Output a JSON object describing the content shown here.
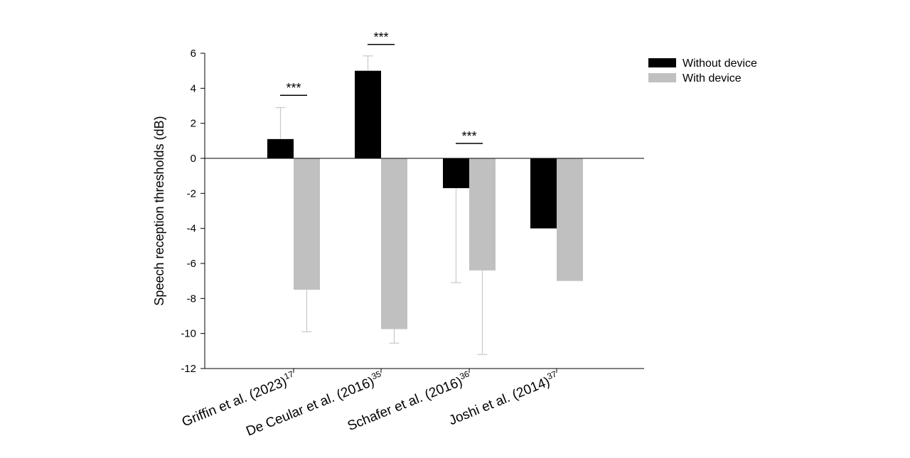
{
  "chart_data": {
    "type": "bar",
    "ylabel": "Speech reception thresholds (dB)",
    "ylim": [
      -12,
      6
    ],
    "yticks": [
      6,
      4,
      2,
      0,
      -2,
      -4,
      -6,
      -8,
      -10,
      -12
    ],
    "ytick_labels": [
      "6",
      "4",
      "2",
      "0",
      "-2",
      "-4",
      "-6",
      "-8",
      "-10",
      "-12"
    ],
    "grid": false,
    "legend_position": "top-right",
    "categories": [
      {
        "main": "Griffin et al. (2023)",
        "sup": "17"
      },
      {
        "main": "De Ceular et al. (2016)",
        "sup": "35"
      },
      {
        "main": "Schafer et al. (2016)",
        "sup": "36"
      },
      {
        "main": "Joshi et al. (2014)",
        "sup": "37"
      }
    ],
    "series": [
      {
        "name": "Without device",
        "color": "#000000",
        "values": [
          1.1,
          5.0,
          -1.7,
          -4.0
        ],
        "errors": [
          1.8,
          0.85,
          5.4,
          null
        ]
      },
      {
        "name": "With device",
        "color": "#c0c0c0",
        "values": [
          -7.5,
          -9.75,
          -6.4,
          -7.0
        ],
        "errors": [
          2.4,
          0.8,
          4.8,
          null
        ]
      }
    ],
    "significance": [
      {
        "category": 0,
        "label": "***",
        "y": 3.6
      },
      {
        "category": 1,
        "label": "***",
        "y": 6.5
      },
      {
        "category": 2,
        "label": "***",
        "y": 0.85
      }
    ]
  }
}
